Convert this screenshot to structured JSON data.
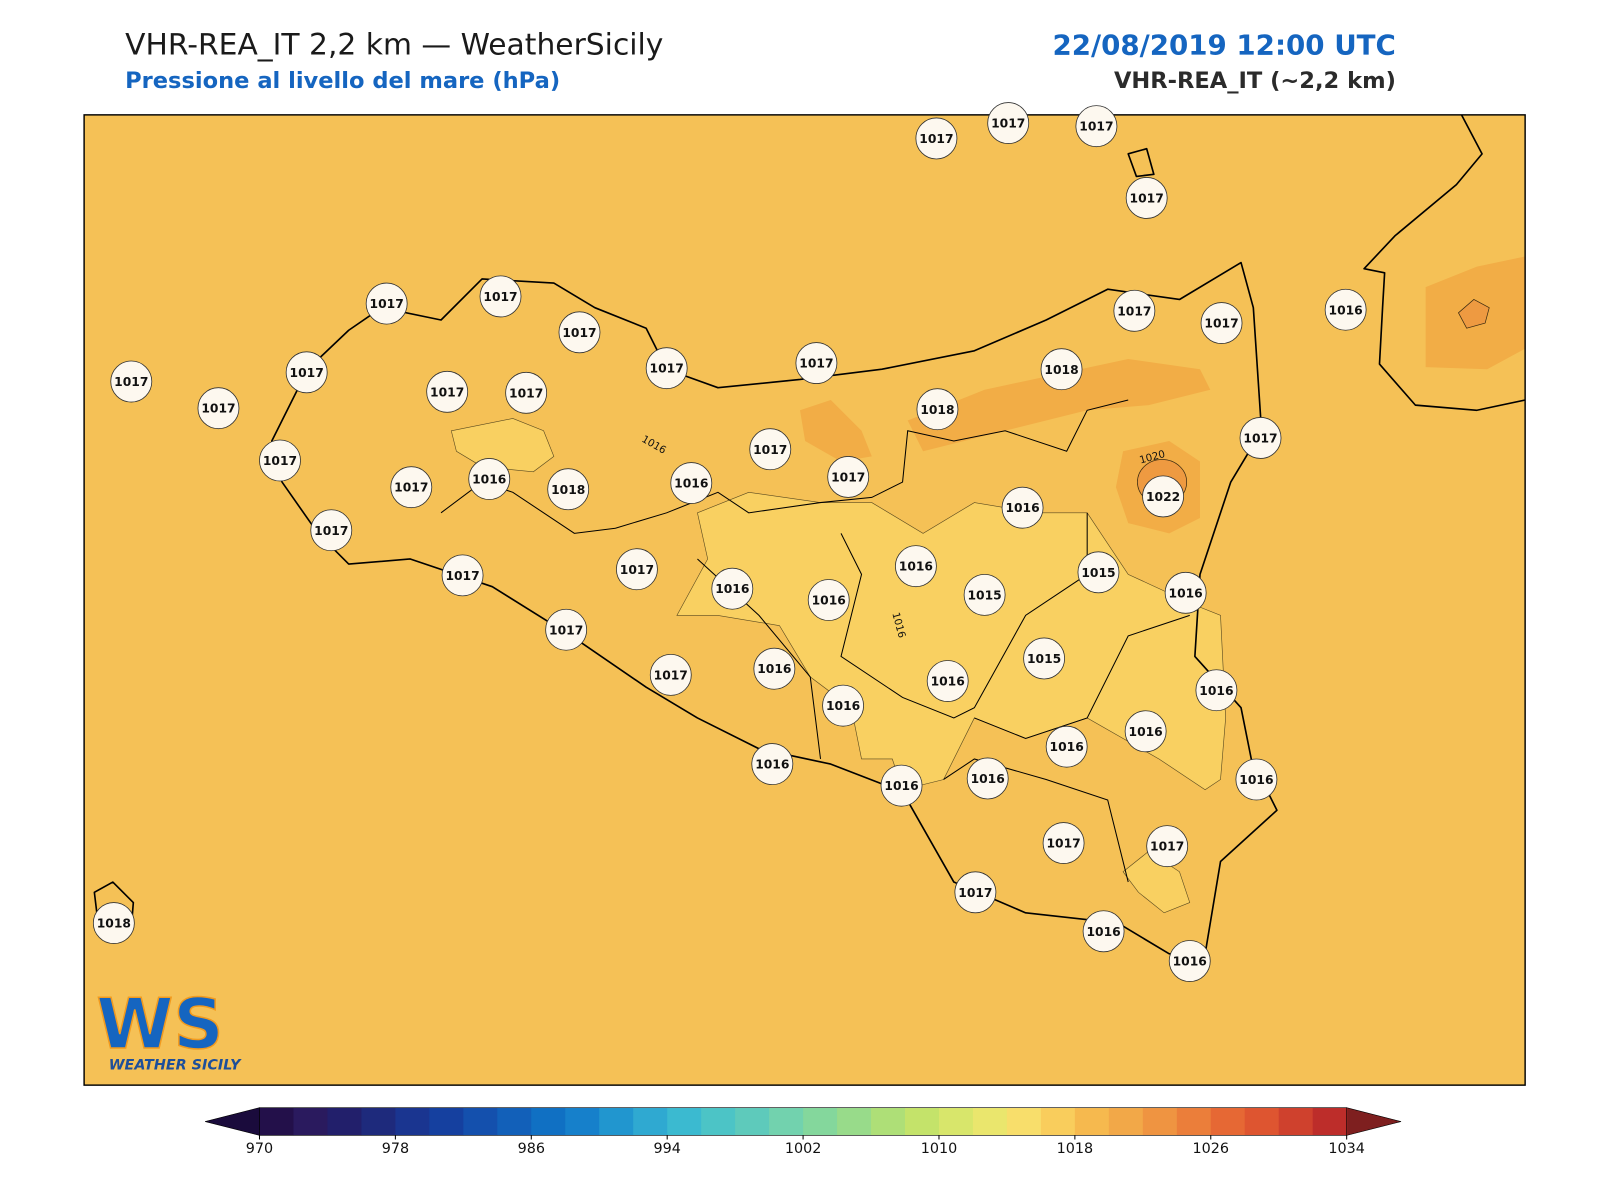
{
  "header": {
    "title": "VHR-REA_IT 2,2 km — WeatherSicily",
    "subtitle": "Pressione al livello del mare (hPa)",
    "date": "22/08/2019 12:00 UTC",
    "model": "VHR-REA_IT (~2,2 km)"
  },
  "stations": [
    1017,
    1017,
    1017,
    1017,
    1017,
    1017,
    1017,
    1017,
    1017,
    1017,
    1017,
    1016,
    1017,
    1017,
    1017,
    1017,
    1018,
    1018,
    1017,
    1017,
    1017,
    1017,
    1016,
    1018,
    1016,
    1017,
    1022,
    1017,
    1016,
    1017,
    1017,
    1017,
    1016,
    1015,
    1016,
    1016,
    1015,
    1016,
    1017,
    1015,
    1017,
    1016,
    1016,
    1016,
    1016,
    1016,
    1016,
    1016,
    1016,
    1016,
    1016,
    1017,
    1017,
    1017,
    1016,
    1016,
    1018
  ],
  "contour_labels": [
    "1016",
    "1016",
    "1020"
  ],
  "logo": {
    "mark": "WS",
    "name": "WEATHER SICILY"
  },
  "colorbar": {
    "lim": [
      970,
      1034
    ],
    "ticks": [
      970,
      978,
      986,
      994,
      1002,
      1010,
      1018,
      1026,
      1034
    ],
    "under": "#1a0b3c",
    "over": "#7e1f1f",
    "colors": [
      "#23104a",
      "#2a1a5e",
      "#221f6b",
      "#1e2a7c",
      "#1a3590",
      "#15409f",
      "#1450ad",
      "#1260b9",
      "#1070c3",
      "#1680cb",
      "#2196cf",
      "#2fa9d1",
      "#3bbad0",
      "#4cc4c6",
      "#5ecabb",
      "#72d2ae",
      "#84d79c",
      "#98db8a",
      "#aedf77",
      "#c4e36a",
      "#d8e66b",
      "#eae66d",
      "#f8de6b",
      "#f9cd5c",
      "#f6b94e",
      "#f2a848",
      "#ef9441",
      "#eb7e3a",
      "#e66834",
      "#de5530",
      "#cf412d",
      "#bd2d2a"
    ]
  }
}
